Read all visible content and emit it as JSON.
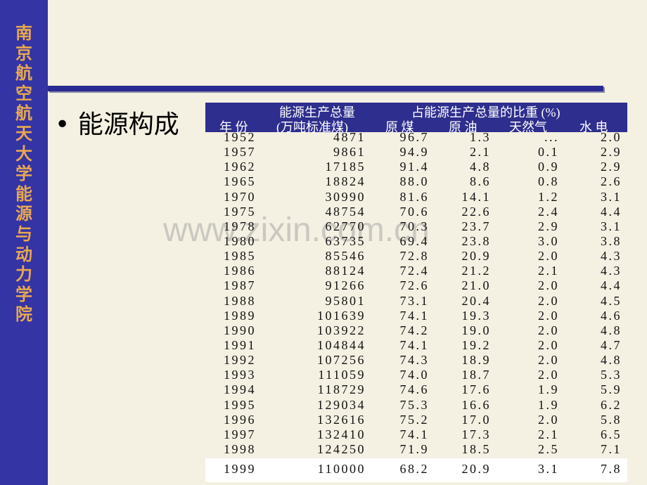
{
  "sidebar": {
    "text": "南京航空航天大学能源与动力学院"
  },
  "bullet": "能源构成",
  "watermark": "www.zixin.com.cn",
  "table": {
    "header": {
      "group_total": "能源生产总量",
      "unit_total": "(万吨标准煤)",
      "group_share": "占能源生产总量的比重 (%)",
      "columns": [
        "年 份",
        "原 煤",
        "原 油",
        "天然气",
        "水 电"
      ]
    },
    "rows": [
      [
        "1952",
        "4871",
        "96.7",
        "1.3",
        "...",
        "2.0"
      ],
      [
        "1957",
        "9861",
        "94.9",
        "2.1",
        "0.1",
        "2.9"
      ],
      [
        "1962",
        "17185",
        "91.4",
        "4.8",
        "0.9",
        "2.9"
      ],
      [
        "1965",
        "18824",
        "88.0",
        "8.6",
        "0.8",
        "2.6"
      ],
      [
        "1970",
        "30990",
        "81.6",
        "14.1",
        "1.2",
        "3.1"
      ],
      [
        "1975",
        "48754",
        "70.6",
        "22.6",
        "2.4",
        "4.4"
      ],
      [
        "1978",
        "62770",
        "70.3",
        "23.7",
        "2.9",
        "3.1"
      ],
      [
        "1980",
        "63735",
        "69.4",
        "23.8",
        "3.0",
        "3.8"
      ],
      [
        "1985",
        "85546",
        "72.8",
        "20.9",
        "2.0",
        "4.3"
      ],
      [
        "1986",
        "88124",
        "72.4",
        "21.2",
        "2.1",
        "4.3"
      ],
      [
        "1987",
        "91266",
        "72.6",
        "21.0",
        "2.0",
        "4.4"
      ],
      [
        "1988",
        "95801",
        "73.1",
        "20.4",
        "2.0",
        "4.5"
      ],
      [
        "1989",
        "101639",
        "74.1",
        "19.3",
        "2.0",
        "4.6"
      ],
      [
        "1990",
        "103922",
        "74.2",
        "19.0",
        "2.0",
        "4.8"
      ],
      [
        "1991",
        "104844",
        "74.1",
        "19.2",
        "2.0",
        "4.7"
      ],
      [
        "1992",
        "107256",
        "74.3",
        "18.9",
        "2.0",
        "4.8"
      ],
      [
        "1993",
        "111059",
        "74.0",
        "18.7",
        "2.0",
        "5.3"
      ],
      [
        "1994",
        "118729",
        "74.6",
        "17.6",
        "1.9",
        "5.9"
      ],
      [
        "1995",
        "129034",
        "75.3",
        "16.6",
        "1.9",
        "6.2"
      ],
      [
        "1996",
        "132616",
        "75.2",
        "17.0",
        "2.0",
        "5.8"
      ],
      [
        "1997",
        "132410",
        "74.1",
        "17.3",
        "2.1",
        "6.5"
      ],
      [
        "1998",
        "124250",
        "71.9",
        "18.5",
        "2.5",
        "7.1"
      ],
      [
        "1999",
        "110000",
        "68.2",
        "20.9",
        "3.1",
        "7.8"
      ]
    ]
  }
}
